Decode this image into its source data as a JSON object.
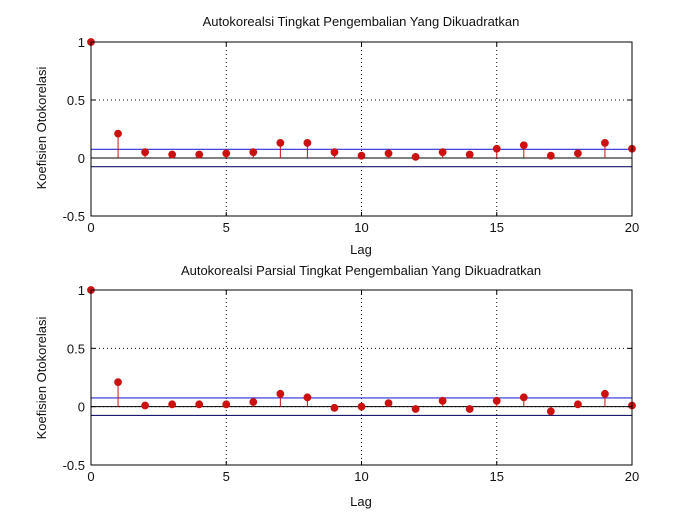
{
  "colors": {
    "stem": "#cc1111",
    "bound_upper": "#2b2bd6",
    "bound_lower": "#1a1a6e",
    "zero_line": "#000000",
    "grid": "#000000"
  },
  "chart_data": [
    {
      "type": "stem",
      "title": "Autokorealsi Tingkat Pengembalian Yang Dikuadratkan",
      "xlabel": "Lag",
      "ylabel": "Koefisien Otokorelasi",
      "xlim": [
        0,
        20
      ],
      "ylim": [
        -0.5,
        1
      ],
      "xticks": [
        "0",
        "5",
        "10",
        "15",
        "20"
      ],
      "yticks": [
        "-0.5",
        "0",
        "0.5",
        "1"
      ],
      "grid": "dotted",
      "x": [
        0,
        1,
        2,
        3,
        4,
        5,
        6,
        7,
        8,
        9,
        10,
        11,
        12,
        13,
        14,
        15,
        16,
        17,
        18,
        19,
        20
      ],
      "values": [
        1.0,
        0.21,
        0.05,
        0.03,
        0.03,
        0.04,
        0.05,
        0.13,
        0.13,
        0.05,
        0.02,
        0.04,
        0.01,
        0.05,
        0.03,
        0.08,
        0.11,
        0.02,
        0.04,
        0.13,
        0.08
      ],
      "bounds": [
        0.075,
        -0.075
      ]
    },
    {
      "type": "stem",
      "title": "Autokorealsi Parsial Tingkat Pengembalian Yang Dikuadratkan",
      "xlabel": "Lag",
      "ylabel": "Koefisien Otokorelasi",
      "xlim": [
        0,
        20
      ],
      "ylim": [
        -0.5,
        1
      ],
      "xticks": [
        "0",
        "5",
        "10",
        "15",
        "20"
      ],
      "yticks": [
        "-0.5",
        "0",
        "0.5",
        "1"
      ],
      "grid": "dotted",
      "x": [
        0,
        1,
        2,
        3,
        4,
        5,
        6,
        7,
        8,
        9,
        10,
        11,
        12,
        13,
        14,
        15,
        16,
        17,
        18,
        19,
        20
      ],
      "values": [
        1.0,
        0.21,
        0.01,
        0.02,
        0.02,
        0.02,
        0.04,
        0.11,
        0.08,
        -0.01,
        0.0,
        0.03,
        -0.02,
        0.05,
        -0.02,
        0.05,
        0.08,
        -0.04,
        0.02,
        0.11,
        0.01
      ],
      "bounds": [
        0.075,
        -0.075
      ]
    }
  ]
}
